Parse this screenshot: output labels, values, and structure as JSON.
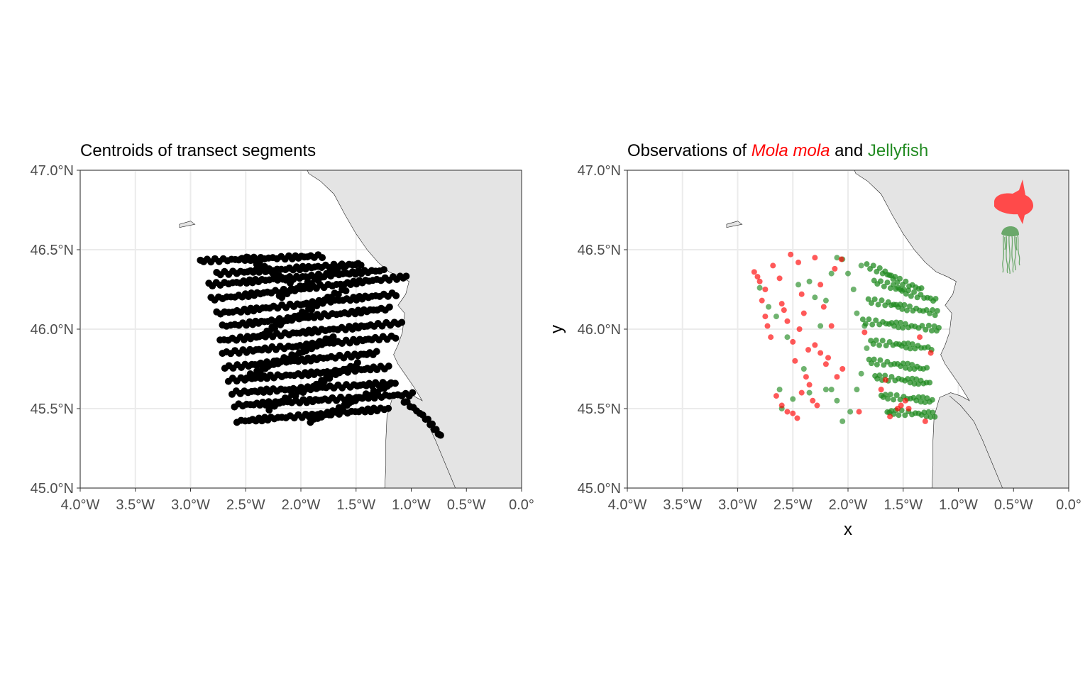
{
  "colors": {
    "land": "#e4e4e4",
    "coast_line": "#222222",
    "grid": "#ebebeb",
    "segment_point": "#000000",
    "mola": "#ff0000",
    "jelly": "#228b22"
  },
  "chart_data": [
    {
      "type": "scatter",
      "map": "Bay of Biscay coastline (land shaded)",
      "title": "Centroids of transect segments",
      "xlabel": "",
      "ylabel": "",
      "xlim": [
        -4.0,
        0.0
      ],
      "ylim": [
        45.0,
        47.0
      ],
      "x_ticks": [
        -4.0,
        -3.5,
        -3.0,
        -2.5,
        -2.0,
        -1.5,
        -1.0,
        -0.5,
        0.0
      ],
      "y_ticks": [
        45.0,
        45.5,
        46.0,
        46.5,
        47.0
      ],
      "x_tick_labels": [
        "4.0°W",
        "3.5°W",
        "3.0°W",
        "2.5°W",
        "2.0°W",
        "1.5°W",
        "1.0°W",
        "0.5°W",
        "0.0°"
      ],
      "y_tick_labels": [
        "45.0°N",
        "45.5°N",
        "46.0°N",
        "46.5°N",
        "47.0°N"
      ],
      "grid": true,
      "series": [
        {
          "color": "#000000",
          "transects": [
            [
              [
                -2.9,
                46.43
              ],
              [
                -1.8,
                46.46
              ]
            ],
            [
              [
                -2.75,
                46.35
              ],
              [
                -1.45,
                46.41
              ]
            ],
            [
              [
                -2.82,
                46.28
              ],
              [
                -1.25,
                46.37
              ]
            ],
            [
              [
                -2.8,
                46.19
              ],
              [
                -1.05,
                46.33
              ]
            ],
            [
              [
                -2.75,
                46.1
              ],
              [
                -1.15,
                46.22
              ]
            ],
            [
              [
                -2.7,
                46.02
              ],
              [
                -1.2,
                46.13
              ]
            ],
            [
              [
                -2.72,
                45.93
              ],
              [
                -1.1,
                46.04
              ]
            ],
            [
              [
                -2.7,
                45.85
              ],
              [
                -1.15,
                45.95
              ]
            ],
            [
              [
                -2.68,
                45.76
              ],
              [
                -1.3,
                45.85
              ]
            ],
            [
              [
                -2.65,
                45.68
              ],
              [
                -1.2,
                45.76
              ]
            ],
            [
              [
                -2.62,
                45.6
              ],
              [
                -1.15,
                45.66
              ]
            ],
            [
              [
                -2.6,
                45.52
              ],
              [
                -1.0,
                45.59
              ]
            ],
            [
              [
                -2.58,
                45.42
              ],
              [
                -1.2,
                45.5
              ]
            ]
          ],
          "diagonals": [
            [
              [
                -2.5,
                46.45
              ],
              [
                -2.1,
                46.3
              ]
            ],
            [
              [
                -2.2,
                46.2
              ],
              [
                -1.6,
                46.4
              ]
            ],
            [
              [
                -2.4,
                45.95
              ],
              [
                -1.6,
                46.25
              ]
            ],
            [
              [
                -2.5,
                45.7
              ],
              [
                -1.7,
                45.95
              ]
            ],
            [
              [
                -2.3,
                45.5
              ],
              [
                -1.5,
                45.78
              ]
            ],
            [
              [
                -1.9,
                45.42
              ],
              [
                -1.2,
                45.65
              ]
            ],
            [
              [
                -1.05,
                45.55
              ],
              [
                -0.72,
                45.33
              ]
            ]
          ]
        }
      ]
    },
    {
      "type": "scatter",
      "map": "Bay of Biscay coastline (land shaded)",
      "title": {
        "prefix": "Observations of ",
        "species1": "Mola mola",
        "middle": " and ",
        "species2": "Jellyfish"
      },
      "xlabel": "x",
      "ylabel": "y",
      "xlim": [
        -4.0,
        0.0
      ],
      "ylim": [
        45.0,
        47.0
      ],
      "x_ticks": [
        -4.0,
        -3.5,
        -3.0,
        -2.5,
        -2.0,
        -1.5,
        -1.0,
        -0.5,
        0.0
      ],
      "y_ticks": [
        45.0,
        45.5,
        46.0,
        46.5,
        47.0
      ],
      "x_tick_labels": [
        "4.0°W",
        "3.5°W",
        "3.0°W",
        "2.5°W",
        "2.0°W",
        "1.5°W",
        "1.0°W",
        "0.5°W",
        "0.0°"
      ],
      "y_tick_labels": [
        "45.0°N",
        "45.5°N",
        "46.0°N",
        "46.5°N",
        "47.0°N"
      ],
      "grid": true,
      "icons": [
        "mola-mola-fish-icon",
        "jellyfish-icon"
      ],
      "series": [
        {
          "color": "#ff0000",
          "points": [
            [
              -2.85,
              46.36
            ],
            [
              -2.82,
              46.33
            ],
            [
              -2.8,
              46.3
            ],
            [
              -2.78,
              46.18
            ],
            [
              -2.75,
              46.08
            ],
            [
              -2.73,
              46.02
            ],
            [
              -2.7,
              45.95
            ],
            [
              -2.68,
              46.4
            ],
            [
              -2.62,
              46.32
            ],
            [
              -2.6,
              46.16
            ],
            [
              -2.55,
              46.05
            ],
            [
              -2.52,
              46.47
            ],
            [
              -2.5,
              45.92
            ],
            [
              -2.48,
              45.8
            ],
            [
              -2.45,
              46.42
            ],
            [
              -2.42,
              46.22
            ],
            [
              -2.4,
              46.1
            ],
            [
              -2.38,
              45.7
            ],
            [
              -2.35,
              45.65
            ],
            [
              -2.32,
              45.55
            ],
            [
              -2.3,
              46.45
            ],
            [
              -2.28,
              45.52
            ],
            [
              -2.25,
              45.85
            ],
            [
              -2.22,
              46.14
            ],
            [
              -2.2,
              45.78
            ],
            [
              -2.15,
              46.02
            ],
            [
              -2.1,
              45.7
            ],
            [
              -2.06,
              46.44
            ],
            [
              -2.5,
              45.47
            ],
            [
              -2.46,
              45.44
            ],
            [
              -2.55,
              45.48
            ],
            [
              -2.6,
              45.52
            ],
            [
              -2.42,
              45.6
            ],
            [
              -2.36,
              45.87
            ],
            [
              -2.18,
              45.82
            ],
            [
              -2.12,
              46.38
            ],
            [
              -2.75,
              46.25
            ],
            [
              -2.58,
              46.12
            ],
            [
              -2.44,
              46.0
            ],
            [
              -2.25,
              46.28
            ],
            [
              -1.85,
              45.98
            ],
            [
              -1.62,
              45.45
            ],
            [
              -1.55,
              45.5
            ],
            [
              -1.52,
              45.52
            ],
            [
              -1.48,
              45.55
            ],
            [
              -1.45,
              45.5
            ],
            [
              -1.3,
              45.42
            ],
            [
              -1.7,
              45.62
            ],
            [
              -1.66,
              45.68
            ],
            [
              -1.9,
              45.48
            ],
            [
              -2.05,
              45.75
            ],
            [
              -1.25,
              45.85
            ],
            [
              -1.35,
              45.95
            ],
            [
              -2.3,
              45.9
            ],
            [
              -2.65,
              45.58
            ]
          ]
        },
        {
          "color": "#228b22",
          "points": [
            [
              -2.8,
              46.26
            ],
            [
              -2.72,
              46.14
            ],
            [
              -2.62,
              45.62
            ],
            [
              -2.45,
              46.28
            ],
            [
              -2.35,
              46.3
            ],
            [
              -2.3,
              46.2
            ],
            [
              -2.2,
              46.18
            ],
            [
              -2.15,
              46.35
            ],
            [
              -2.1,
              46.45
            ],
            [
              -2.05,
              46.44
            ],
            [
              -2.0,
              46.35
            ],
            [
              -1.95,
              46.25
            ],
            [
              -1.92,
              46.1
            ],
            [
              -1.88,
              46.4
            ],
            [
              -2.4,
              45.75
            ],
            [
              -2.35,
              45.6
            ],
            [
              -2.2,
              45.62
            ],
            [
              -2.1,
              45.55
            ],
            [
              -2.05,
              45.42
            ],
            [
              -1.98,
              45.48
            ],
            [
              -1.92,
              45.62
            ],
            [
              -1.88,
              45.72
            ],
            [
              -2.55,
              45.95
            ],
            [
              -2.5,
              45.56
            ],
            [
              -2.25,
              46.02
            ],
            [
              -1.85,
              46.02
            ],
            [
              -1.83,
              45.88
            ],
            [
              -2.65,
              46.08
            ],
            [
              -2.6,
              45.5
            ],
            [
              -2.15,
              45.62
            ]
          ],
          "dense_bands": [
            [
              [
                -1.82,
                46.4
              ],
              [
                -1.35,
                46.25
              ]
            ],
            [
              [
                -1.75,
                46.3
              ],
              [
                -1.22,
                46.18
              ]
            ],
            [
              [
                -1.8,
                46.18
              ],
              [
                -1.2,
                46.1
              ]
            ],
            [
              [
                -1.85,
                46.05
              ],
              [
                -1.18,
                46.0
              ]
            ],
            [
              [
                -1.78,
                45.92
              ],
              [
                -1.25,
                45.88
              ]
            ],
            [
              [
                -1.8,
                45.8
              ],
              [
                -1.28,
                45.75
              ]
            ],
            [
              [
                -1.75,
                45.7
              ],
              [
                -1.25,
                45.66
              ]
            ],
            [
              [
                -1.7,
                45.58
              ],
              [
                -1.22,
                45.55
              ]
            ],
            [
              [
                -1.65,
                45.48
              ],
              [
                -1.2,
                45.46
              ]
            ]
          ]
        }
      ]
    }
  ]
}
